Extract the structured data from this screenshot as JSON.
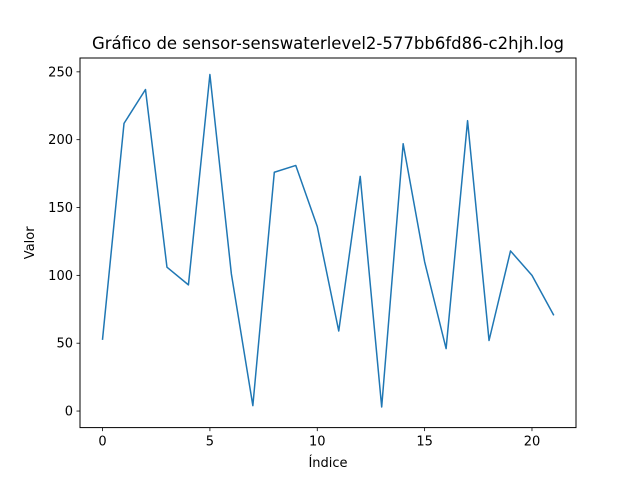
{
  "chart_data": {
    "type": "line",
    "title": "Gráfico de sensor-senswaterlevel2-577bb6fd86-c2hjh.log",
    "xlabel": "Índice",
    "ylabel": "Valor",
    "xlim": [
      -1.05,
      22.05
    ],
    "ylim": [
      -12.2,
      260.2
    ],
    "xticks": [
      0,
      5,
      10,
      15,
      20
    ],
    "yticks": [
      0,
      50,
      100,
      150,
      200,
      250
    ],
    "grid": false,
    "series": [
      {
        "color": "#1f77b4",
        "x": [
          0,
          1,
          2,
          3,
          4,
          5,
          6,
          7,
          8,
          9,
          10,
          11,
          12,
          13,
          14,
          15,
          16,
          17,
          18,
          19,
          20,
          21
        ],
        "values": [
          53,
          212,
          237,
          106,
          93,
          248,
          101,
          4,
          176,
          181,
          136,
          59,
          173,
          3,
          197,
          110,
          46,
          214,
          52,
          118,
          100,
          71
        ]
      }
    ]
  }
}
